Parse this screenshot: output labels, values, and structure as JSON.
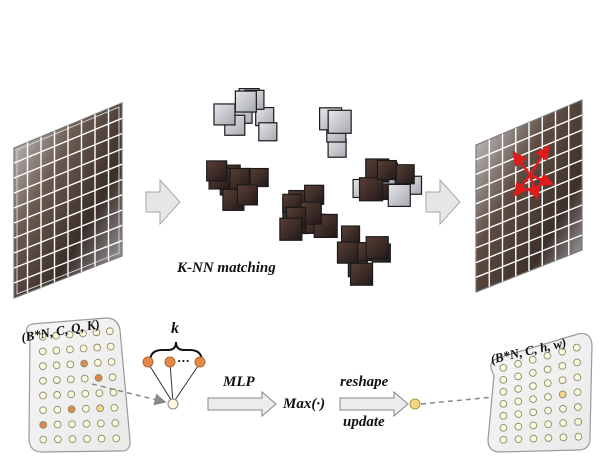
{
  "top": {
    "knn_label": "K-NN matching"
  },
  "bottom": {
    "input_shape": "(B*N, C, Q, K)",
    "k_label": "k",
    "ellipsis": "...",
    "mlp_label": "MLP",
    "max_label": "Max(·)",
    "reshape_label": "reshape",
    "update_label": "update",
    "output_shape": "(B*N, C, h, w)"
  },
  "colors": {
    "grid_line": "#ffffff",
    "image_dark": "#3a2e28",
    "image_light": "#c9ccd3",
    "arrow_fill": "#e6e6e6",
    "arrow_stroke": "#a6a6a6",
    "red_arrow": "#e01b1b",
    "node_orange": "#e08a4a",
    "node_pale": "#fffbe0",
    "node_yellow": "#f4d58a",
    "panel_fill": "#f2f2f2",
    "panel_stroke": "#9a9a9a"
  }
}
